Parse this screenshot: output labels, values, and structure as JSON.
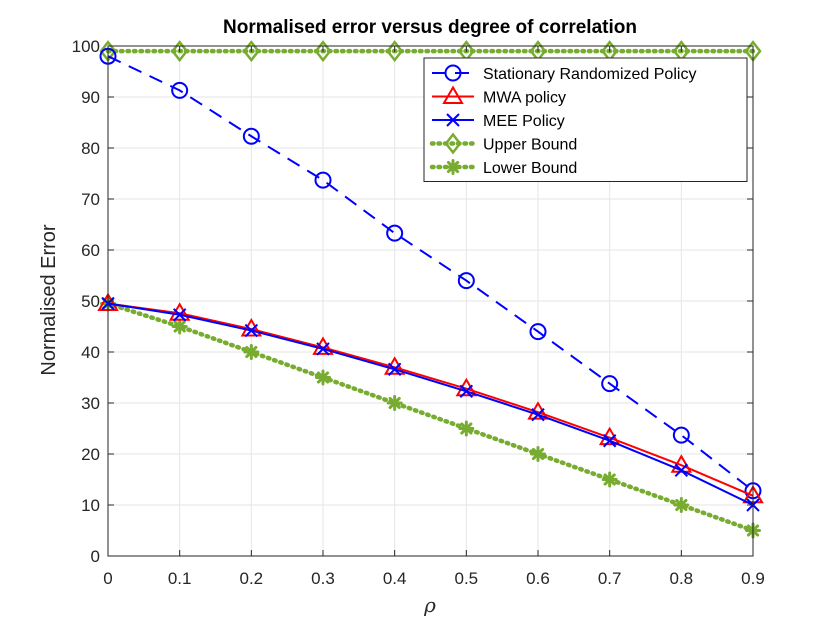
{
  "chart_data": {
    "type": "line",
    "title": "Normalised error versus degree of correlation",
    "xlabel": "ρ",
    "ylabel": "Normalised Error",
    "x": [
      0,
      0.1,
      0.2,
      0.3,
      0.4,
      0.5,
      0.6,
      0.7,
      0.8,
      0.9
    ],
    "xlim": [
      0,
      0.9
    ],
    "ylim": [
      0,
      100
    ],
    "xticks": [
      0,
      0.1,
      0.2,
      0.3,
      0.4,
      0.5,
      0.6,
      0.7,
      0.8,
      0.9
    ],
    "xtick_labels": [
      "0",
      "0.1",
      "0.2",
      "0.3",
      "0.4",
      "0.5",
      "0.6",
      "0.7",
      "0.8",
      "0.9"
    ],
    "yticks": [
      0,
      10,
      20,
      30,
      40,
      50,
      60,
      70,
      80,
      90,
      100
    ],
    "ytick_labels": [
      "0",
      "10",
      "20",
      "30",
      "40",
      "50",
      "60",
      "70",
      "80",
      "90",
      "100"
    ],
    "grid": true,
    "legend_position": "top-right",
    "series": [
      {
        "name": "Stationary Randomized Policy",
        "color": "#0000ff",
        "linestyle": "dashed",
        "marker": "circle",
        "values": [
          98,
          91.3,
          82.3,
          73.7,
          63.3,
          54,
          44,
          33.8,
          23.7,
          12.8
        ]
      },
      {
        "name": "MWA policy",
        "color": "#ff0000",
        "linestyle": "solid",
        "marker": "triangle",
        "values": [
          49.5,
          47.6,
          44.5,
          40.9,
          37,
          32.8,
          28.2,
          23.2,
          17.8,
          11.8
        ]
      },
      {
        "name": "MEE Policy",
        "color": "#0000ff",
        "linestyle": "solid",
        "marker": "x",
        "values": [
          49.5,
          47.3,
          44.2,
          40.6,
          36.6,
          32.3,
          27.7,
          22.6,
          16.8,
          10
        ]
      },
      {
        "name": "Upper Bound",
        "color": "#77ac30",
        "linestyle": "dotted",
        "marker": "diamond",
        "values": [
          99,
          99,
          99,
          99,
          99,
          99,
          99,
          99,
          99,
          99
        ]
      },
      {
        "name": "Lower Bound",
        "color": "#77ac30",
        "linestyle": "dotted",
        "marker": "asterisk",
        "values": [
          49.5,
          45,
          40,
          35,
          30,
          25,
          20,
          15,
          10,
          5
        ]
      }
    ]
  }
}
